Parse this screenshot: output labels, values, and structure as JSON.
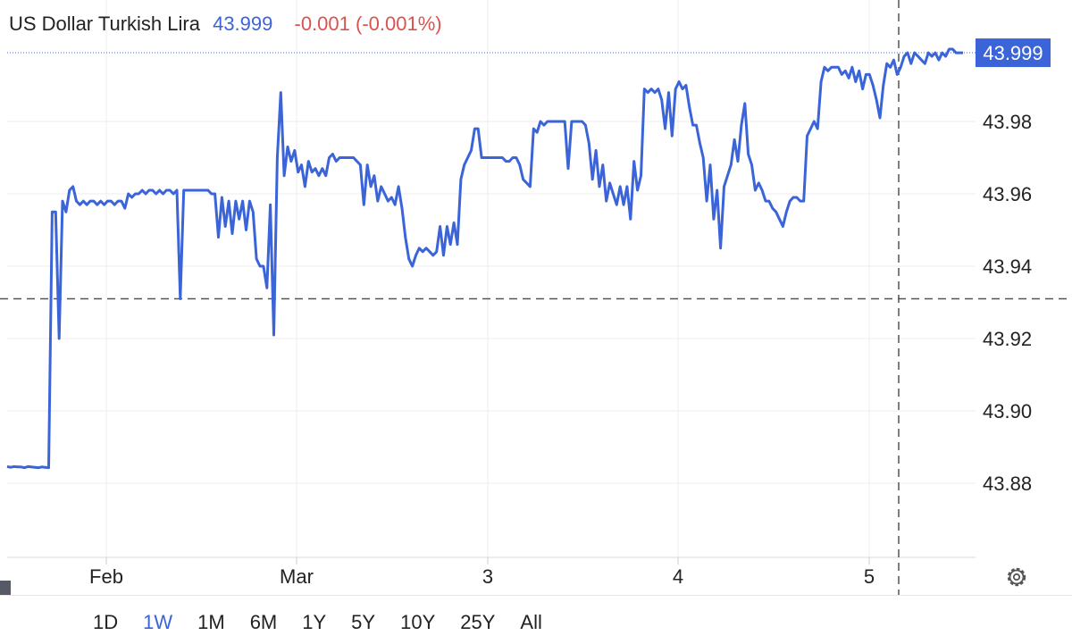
{
  "legend": {
    "name": "US Dollar Turkish Lira",
    "price": "43.999",
    "change": "-0.001 (-0.001%)"
  },
  "periods": [
    "1D",
    "1W",
    "1M",
    "6M",
    "1Y",
    "5Y",
    "10Y",
    "25Y",
    "All"
  ],
  "active_period": "1W",
  "icons": {
    "settings": "gear-icon"
  },
  "colors": {
    "line": "#3a64d8",
    "change": "#d9534f",
    "price_tag": "#3a64d8"
  },
  "chart_data": {
    "type": "line",
    "title": "",
    "xlabel": "",
    "ylabel": "",
    "x_tick_labels": [
      "Feb",
      "Mar",
      "3",
      "4",
      "5"
    ],
    "y_tick_labels": [
      "43.88",
      "43.90",
      "43.92",
      "43.94",
      "43.96",
      "43.98"
    ],
    "ylim": [
      43.858,
      44.007
    ],
    "last_price_label": "43.999",
    "crosshair_price": 43.931,
    "grid": true,
    "series": [
      {
        "values": [
          43.8846,
          43.8844,
          43.8846,
          43.8845,
          43.8845,
          43.8843,
          43.8846,
          43.8845,
          43.8844,
          43.8843,
          43.8845,
          43.8844,
          43.8843,
          43.955,
          43.955,
          43.92,
          43.958,
          43.955,
          43.961,
          43.962,
          43.958,
          43.957,
          43.958,
          43.957,
          43.958,
          43.958,
          43.957,
          43.958,
          43.957,
          43.958,
          43.958,
          43.957,
          43.958,
          43.958,
          43.956,
          43.96,
          43.959,
          43.96,
          43.96,
          43.961,
          43.96,
          43.961,
          43.961,
          43.96,
          43.961,
          43.96,
          43.961,
          43.961,
          43.96,
          43.961,
          43.931,
          43.961,
          43.961,
          43.961,
          43.961,
          43.961,
          43.961,
          43.961,
          43.961,
          43.96,
          43.96,
          43.948,
          43.959,
          43.951,
          43.958,
          43.949,
          43.958,
          43.953,
          43.958,
          43.95,
          43.958,
          43.955,
          43.942,
          43.94,
          43.94,
          43.934,
          43.957,
          43.921,
          43.97,
          43.988,
          43.965,
          43.973,
          43.969,
          43.972,
          43.966,
          43.968,
          43.962,
          43.969,
          43.966,
          43.967,
          43.965,
          43.967,
          43.965,
          43.97,
          43.971,
          43.969,
          43.97,
          43.97,
          43.97,
          43.97,
          43.97,
          43.969,
          43.968,
          43.957,
          43.968,
          43.962,
          43.965,
          43.958,
          43.962,
          43.96,
          43.958,
          43.959,
          43.957,
          43.962,
          43.956,
          43.948,
          43.942,
          43.94,
          43.943,
          43.945,
          43.944,
          43.945,
          43.944,
          43.943,
          43.944,
          43.951,
          43.943,
          43.951,
          43.946,
          43.952,
          43.946,
          43.964,
          43.968,
          43.97,
          43.972,
          43.978,
          43.978,
          43.97,
          43.97,
          43.97,
          43.97,
          43.97,
          43.97,
          43.97,
          43.969,
          43.969,
          43.97,
          43.97,
          43.968,
          43.964,
          43.963,
          43.962,
          43.978,
          43.977,
          43.98,
          43.979,
          43.98,
          43.98,
          43.98,
          43.98,
          43.98,
          43.98,
          43.967,
          43.98,
          43.98,
          43.98,
          43.98,
          43.979,
          43.974,
          43.964,
          43.972,
          43.962,
          43.968,
          43.958,
          43.963,
          43.96,
          43.957,
          43.962,
          43.957,
          43.962,
          43.953,
          43.969,
          43.961,
          43.965,
          43.989,
          43.988,
          43.989,
          43.988,
          43.989,
          43.986,
          43.978,
          43.988,
          43.976,
          43.989,
          43.991,
          43.989,
          43.99,
          43.984,
          43.979,
          43.979,
          43.974,
          43.97,
          43.958,
          43.968,
          43.953,
          43.961,
          43.945,
          43.962,
          43.965,
          43.968,
          43.975,
          43.969,
          43.979,
          43.985,
          43.971,
          43.968,
          43.961,
          43.963,
          43.961,
          43.958,
          43.958,
          43.956,
          43.955,
          43.953,
          43.951,
          43.955,
          43.958,
          43.959,
          43.959,
          43.958,
          43.958,
          43.976,
          43.978,
          43.98,
          43.978,
          43.991,
          43.995,
          43.994,
          43.995,
          43.995,
          43.995,
          43.993,
          43.994,
          43.992,
          43.995,
          43.991,
          43.994,
          43.989,
          43.993,
          43.993,
          43.99,
          43.986,
          43.981,
          43.99,
          43.996,
          43.995,
          43.997,
          43.993,
          43.995,
          43.998,
          43.999,
          43.996,
          43.999,
          43.998,
          43.997,
          43.996,
          43.999,
          43.998,
          43.999,
          43.997,
          43.999,
          43.998,
          44.0,
          44.0,
          43.999,
          43.999,
          43.999
        ]
      }
    ]
  }
}
